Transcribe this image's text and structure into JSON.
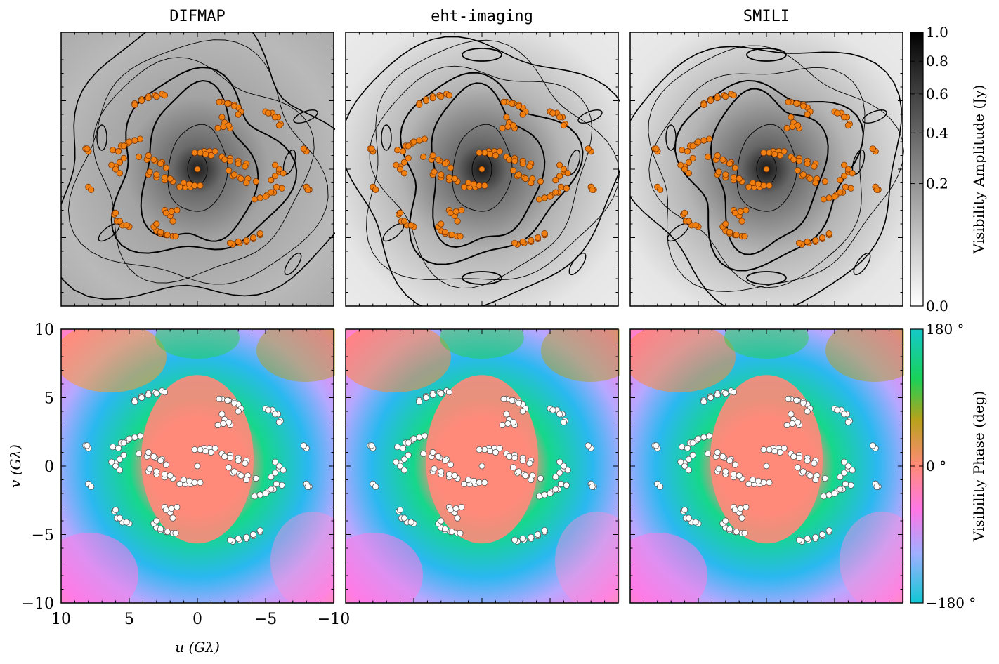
{
  "figure": {
    "panel_titles": [
      "DIFMAP",
      "eht-imaging",
      "SMILI"
    ]
  },
  "chart_data": [
    {
      "type": "heatmap",
      "row": "amplitude",
      "panels": [
        "DIFMAP",
        "eht-imaging",
        "SMILI"
      ],
      "colorbar": {
        "label": "Visibility Amplitude (Jy)",
        "ticks": [
          "1.0",
          "0.8",
          "0.6",
          "0.4",
          "0.2",
          "0.0"
        ],
        "tick_values": [
          1.0,
          0.8,
          0.6,
          0.4,
          0.2,
          0.0
        ],
        "scale": "sqrt",
        "colormap": "greys",
        "range": [
          0.0,
          1.0
        ]
      },
      "overlay": "uv-coverage points",
      "overlay_color": "#f07f11",
      "contours": true
    },
    {
      "type": "heatmap",
      "row": "phase",
      "panels": [
        "DIFMAP",
        "eht-imaging",
        "SMILI"
      ],
      "colorbar": {
        "label": "Visibility Phase (deg)",
        "ticks": [
          "180 °",
          "0 °",
          "−180 °"
        ],
        "tick_values": [
          180,
          0,
          -180
        ],
        "colormap": "cyclic",
        "range": [
          -180,
          180
        ]
      },
      "xlabel": "u (Gλ)",
      "ylabel": "v (Gλ)",
      "xticks": [
        "10",
        "5",
        "0",
        "−5",
        "−10"
      ],
      "xtick_values": [
        10,
        5,
        0,
        -5,
        -10
      ],
      "yticks": [
        "10",
        "5",
        "0",
        "−5",
        "−10"
      ],
      "ytick_values": [
        10,
        5,
        0,
        -5,
        -10
      ],
      "xlim": [
        10,
        -10
      ],
      "ylim": [
        -10,
        10
      ],
      "overlay": "uv-coverage points",
      "overlay_color": "#ffffff",
      "uv_tracks": [
        {
          "u": [
            4.6,
            4.1,
            3.6,
            3.1,
            2.6
          ],
          "v": [
            4.8,
            5.1,
            5.3,
            5.4,
            5.5
          ]
        },
        {
          "u": [
            -1.8,
            -2.3,
            -2.7,
            -3.0,
            -3.2
          ],
          "v": [
            4.9,
            4.8,
            4.7,
            4.5,
            4.2
          ]
        },
        {
          "u": [
            -5.0,
            -5.5,
            -5.9,
            -6.1
          ],
          "v": [
            4.2,
            4.1,
            3.8,
            3.3
          ]
        },
        {
          "u": [
            -2.4,
            -2.0,
            -1.8
          ],
          "v": [
            3.0,
            3.4,
            3.8
          ]
        },
        {
          "u": [
            8.2,
            8.0
          ],
          "v": [
            1.5,
            1.3
          ]
        },
        {
          "u": [
            6.2,
            5.6,
            5.1,
            4.6,
            4.2
          ],
          "v": [
            1.4,
            1.7,
            1.9,
            2.1,
            2.2
          ]
        },
        {
          "u": [
            6.0,
            5.7,
            5.4
          ],
          "v": [
            0.2,
            0.5,
            0.8
          ]
        },
        {
          "u": [
            4.3,
            3.7,
            3.1,
            2.6
          ],
          "v": [
            0.9,
            0.7,
            0.6,
            0.5
          ]
        },
        {
          "u": [
            -0.5,
            -0.9,
            -1.3
          ],
          "v": [
            1.3,
            1.3,
            1.3
          ]
        },
        {
          "u": [
            -1.8,
            -2.4,
            -3.0,
            -3.6
          ],
          "v": [
            0.9,
            0.8,
            0.6,
            0.4
          ]
        },
        {
          "u": [
            -6.3,
            -6.0,
            -5.7
          ],
          "v": [
            -0.3,
            0.0,
            0.3
          ]
        },
        {
          "u": [
            3.5,
            3.0,
            2.4,
            2.0
          ],
          "v": [
            -0.2,
            -0.4,
            -0.6,
            -0.7
          ]
        },
        {
          "u": [
            1.0,
            0.6,
            0.2,
            -0.2
          ],
          "v": [
            -1.0,
            -1.1,
            -1.2,
            -1.2
          ]
        },
        {
          "u": [
            -2.3,
            -2.7,
            -3.2,
            -3.6
          ],
          "v": [
            -0.1,
            -0.4,
            -0.7,
            -1.0
          ]
        },
        {
          "u": [
            -4.6,
            -5.0,
            -5.4,
            -5.8
          ],
          "v": [
            -2.1,
            -2.0,
            -1.7,
            -1.3
          ]
        },
        {
          "u": [
            8.0,
            7.8
          ],
          "v": [
            -1.3,
            -1.5
          ]
        },
        {
          "u": [
            -8.0,
            -8.1
          ],
          "v": [
            -1.3,
            -1.5
          ]
        },
        {
          "u": [
            6.0,
            5.7,
            5.2
          ],
          "v": [
            -3.2,
            -3.8,
            -4.1
          ]
        },
        {
          "u": [
            2.3,
            1.9,
            1.5
          ],
          "v": [
            -3.2,
            -3.1,
            -3.0
          ]
        },
        {
          "u": [
            3.0,
            2.7,
            2.2,
            1.6
          ],
          "v": [
            -4.0,
            -4.6,
            -4.8,
            -4.9
          ]
        },
        {
          "u": [
            -2.4,
            -3.0,
            -3.6,
            -4.1,
            -4.6
          ],
          "v": [
            -5.4,
            -5.3,
            -5.2,
            -5.0,
            -4.7
          ]
        }
      ]
    }
  ]
}
